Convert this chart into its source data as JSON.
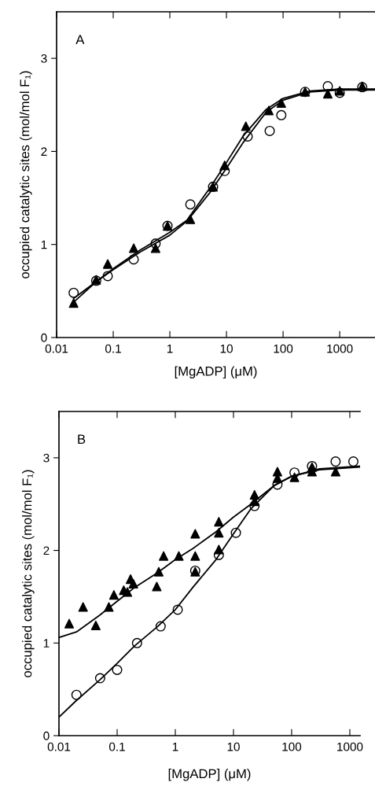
{
  "chart_data": [
    {
      "type": "scatter",
      "annotations": [
        "A"
      ],
      "xlabel": "[MgADP] (μM)",
      "ylabel": "occupied catalytic sites (mol/mol F₁)",
      "log": "x",
      "xlim": [
        0.01,
        4200
      ],
      "xticks": [
        0.01,
        0.1,
        1,
        10,
        100,
        1000
      ],
      "ylim": [
        0,
        3.5
      ],
      "yticks": [
        0,
        1,
        2,
        3
      ],
      "grid": false,
      "legend": false,
      "series": [
        {
          "marker": "triangle",
          "color": "#000000",
          "x": [
            0.02,
            0.05,
            0.08,
            0.23,
            0.56,
            0.91,
            2.3,
            5.8,
            9.3,
            22,
            56,
            93,
            245,
            616,
            1000,
            2500
          ],
          "values": [
            0.37,
            0.62,
            0.79,
            0.96,
            0.96,
            1.2,
            1.27,
            1.62,
            1.85,
            2.27,
            2.44,
            2.52,
            2.64,
            2.62,
            2.65,
            2.7
          ]
        },
        {
          "marker": "circle",
          "color": "#000000",
          "x": [
            0.02,
            0.05,
            0.08,
            0.23,
            0.56,
            0.91,
            2.3,
            5.8,
            9.3,
            23.7,
            58,
            93,
            245,
            616,
            1000,
            2500
          ],
          "values": [
            0.48,
            0.61,
            0.66,
            0.84,
            1.01,
            1.2,
            1.43,
            1.62,
            1.79,
            2.16,
            2.22,
            2.39,
            2.64,
            2.7,
            2.63,
            2.69
          ]
        },
        {
          "type": "line",
          "marker": "none",
          "line_style": "solid",
          "color": "#000000",
          "x": [
            0.02,
            0.05,
            0.1,
            0.3,
            1,
            2,
            5,
            10,
            20,
            50,
            100,
            300,
            1000,
            4200
          ],
          "values": [
            0.42,
            0.6,
            0.73,
            0.92,
            1.1,
            1.25,
            1.55,
            1.82,
            2.1,
            2.42,
            2.55,
            2.64,
            2.66,
            2.66
          ]
        },
        {
          "type": "line",
          "marker": "none",
          "line_style": "solid",
          "color": "#000000",
          "x": [
            0.02,
            0.05,
            0.1,
            0.3,
            1,
            2,
            5,
            10,
            20,
            50,
            100,
            300,
            1000,
            4200
          ],
          "values": [
            0.38,
            0.6,
            0.74,
            0.94,
            1.13,
            1.26,
            1.6,
            1.88,
            2.17,
            2.45,
            2.57,
            2.65,
            2.67,
            2.67
          ]
        }
      ]
    },
    {
      "type": "scatter",
      "annotations": [
        "B"
      ],
      "xlabel": "[MgADP] (μM)",
      "ylabel": "occupied catalytic sites (mol/mol F₁)",
      "log": "x",
      "xlim": [
        0.01,
        1500
      ],
      "xticks": [
        0.01,
        0.1,
        1,
        10,
        100,
        1000
      ],
      "ylim": [
        0,
        3.5
      ],
      "yticks": [
        0,
        1,
        2,
        3
      ],
      "grid": false,
      "legend": false,
      "series": [
        {
          "marker": "triangle",
          "color": "#000000",
          "x": [
            0.015,
            0.026,
            0.043,
            0.072,
            0.088,
            0.13,
            0.15,
            0.17,
            0.19,
            0.48,
            0.52,
            0.63,
            1.15,
            2.2,
            2.2,
            2.2,
            5.6,
            5.6,
            5.6,
            23,
            23,
            57,
            57,
            112,
            224,
            224,
            570
          ],
          "values": [
            1.21,
            1.39,
            1.19,
            1.39,
            1.52,
            1.57,
            1.55,
            1.69,
            1.64,
            1.61,
            1.77,
            1.94,
            1.94,
            2.18,
            1.94,
            1.77,
            2.31,
            2.19,
            2.01,
            2.6,
            2.53,
            2.85,
            2.78,
            2.79,
            2.9,
            2.85,
            2.85
          ]
        },
        {
          "marker": "circle",
          "color": "#000000",
          "x": [
            0.02,
            0.051,
            0.1,
            0.22,
            0.56,
            1.1,
            2.2,
            5.6,
            11,
            23,
            57,
            112,
            224,
            570,
            1150
          ],
          "values": [
            0.44,
            0.62,
            0.71,
            1.0,
            1.18,
            1.36,
            1.78,
            1.95,
            2.19,
            2.48,
            2.71,
            2.84,
            2.91,
            2.96,
            2.96
          ]
        },
        {
          "type": "line",
          "marker": "none",
          "line_style": "solid",
          "color": "#000000",
          "x": [
            0.01,
            0.02,
            0.05,
            0.1,
            0.2,
            0.5,
            1,
            2,
            5,
            10,
            20,
            50,
            100,
            300,
            1500
          ],
          "values": [
            1.06,
            1.12,
            1.3,
            1.45,
            1.6,
            1.76,
            1.9,
            2.02,
            2.2,
            2.36,
            2.5,
            2.7,
            2.8,
            2.88,
            2.91
          ]
        },
        {
          "type": "line",
          "marker": "none",
          "line_style": "solid",
          "color": "#000000",
          "x": [
            0.01,
            0.02,
            0.05,
            0.1,
            0.2,
            0.5,
            1,
            2,
            5,
            10,
            20,
            50,
            100,
            300,
            1500
          ],
          "values": [
            0.2,
            0.38,
            0.6,
            0.78,
            0.97,
            1.18,
            1.36,
            1.6,
            1.9,
            2.18,
            2.45,
            2.7,
            2.8,
            2.87,
            2.9
          ]
        }
      ]
    }
  ]
}
